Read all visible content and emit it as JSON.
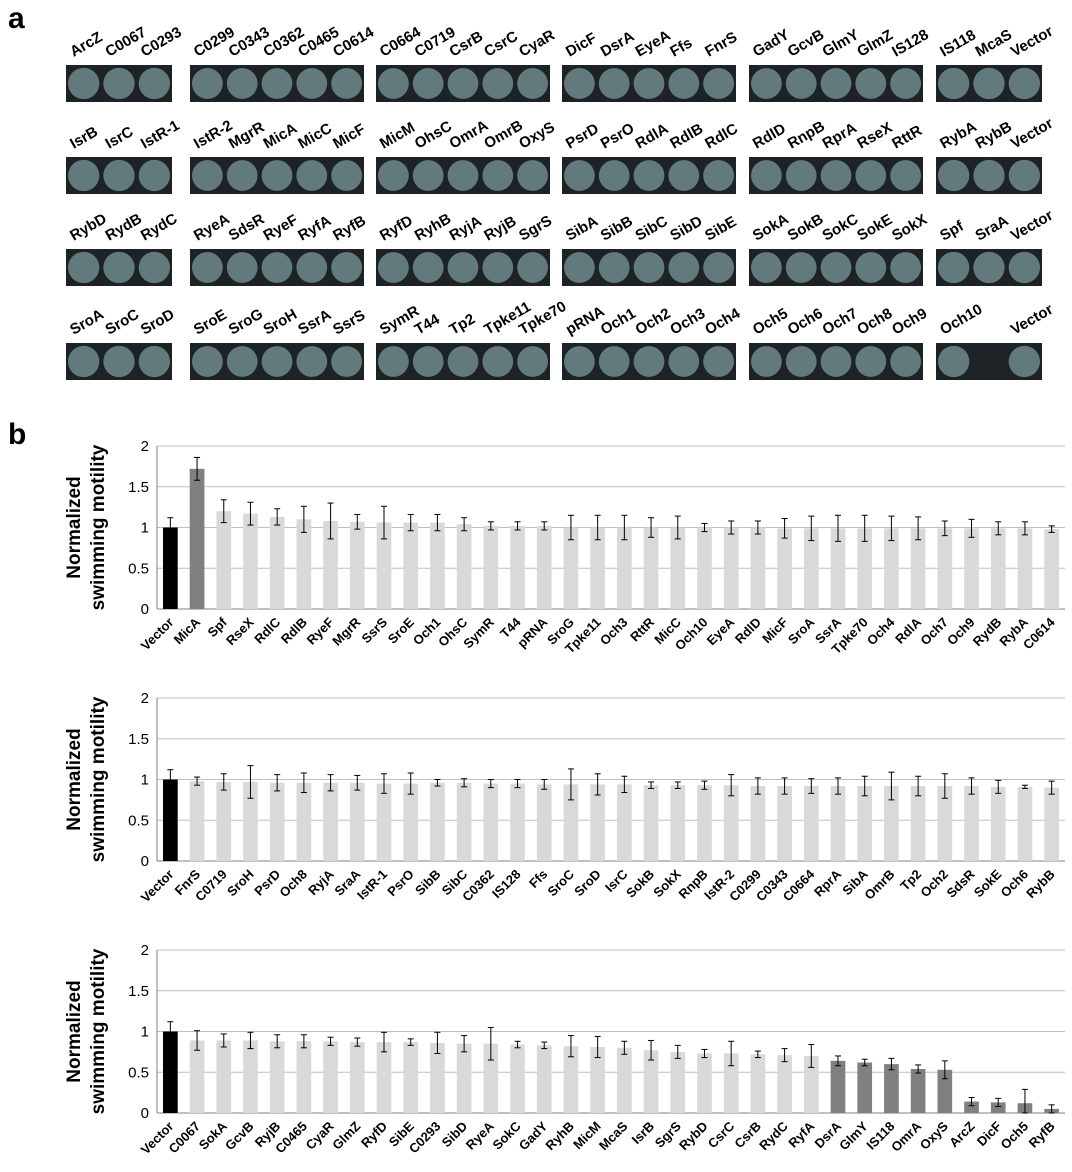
{
  "panel_a": {
    "letter": "a",
    "rows": [
      [
        [
          "ArcZ",
          "C0067",
          "C0293"
        ],
        [
          "C0299",
          "C0343",
          "C0362",
          "C0465",
          "C0614"
        ],
        [
          "C0664",
          "C0719",
          "CsrB",
          "CsrC",
          "CyaR"
        ],
        [
          "DicF",
          "DsrA",
          "EyeA",
          "Ffs",
          "FnrS"
        ],
        [
          "GadY",
          "GcvB",
          "GlmY",
          "GlmZ",
          "IS128"
        ],
        [
          "IS118",
          "McaS",
          "Vector"
        ]
      ],
      [
        [
          "IsrB",
          "IsrC",
          "IstR-1"
        ],
        [
          "IstR-2",
          "MgrR",
          "MicA",
          "MicC",
          "MicF"
        ],
        [
          "MicM",
          "OhsC",
          "OmrA",
          "OmrB",
          "OxyS"
        ],
        [
          "PsrD",
          "PsrO",
          "RdlA",
          "RdlB",
          "RdlC"
        ],
        [
          "RdlD",
          "RnpB",
          "RprA",
          "RseX",
          "RttR"
        ],
        [
          "RybA",
          "RybB",
          "Vector"
        ]
      ],
      [
        [
          "RybD",
          "RydB",
          "RydC"
        ],
        [
          "RyeA",
          "SdsR",
          "RyeF",
          "RyfA",
          "RyfB"
        ],
        [
          "RyfD",
          "RyhB",
          "RyjA",
          "RyjB",
          "SgrS"
        ],
        [
          "SibA",
          "SibB",
          "SibC",
          "SibD",
          "SibE"
        ],
        [
          "SokA",
          "SokB",
          "SokC",
          "SokE",
          "SokX"
        ],
        [
          "Spf",
          "SraA",
          "Vector"
        ]
      ],
      [
        [
          "SroA",
          "SroC",
          "SroD"
        ],
        [
          "SroE",
          "SroG",
          "SroH",
          "SsrA",
          "SsrS"
        ],
        [
          "SymR",
          "T44",
          "Tp2",
          "Tpke11",
          "Tpke70"
        ],
        [
          "pRNA",
          "Och1",
          "Och2",
          "Och3",
          "Och4"
        ],
        [
          "Och5",
          "Och6",
          "Och7",
          "Och8",
          "Och9"
        ],
        [
          "Och10",
          "",
          "Vector"
        ]
      ]
    ]
  },
  "panel_b": {
    "letter": "b"
  },
  "colors": {
    "vector": "#000000",
    "significant": "#808080",
    "normal": "#d9d9d9",
    "grid": "#bfbfbf",
    "plate_bg": "#1c2226",
    "colony": "#6f8a8c"
  },
  "chart_data": [
    {
      "type": "bar",
      "ylabel": "Normalized swimming motility",
      "ylim": [
        0,
        2
      ],
      "yticks": [
        "0",
        "0.5",
        "1",
        "1.5",
        "2"
      ],
      "categories": [
        "Vector",
        "MicA",
        "Spf",
        "RseX",
        "RdlC",
        "RdlB",
        "RyeF",
        "MgrR",
        "SsrS",
        "SroE",
        "Och1",
        "OhsC",
        "SymR",
        "T44",
        "pRNA",
        "SroG",
        "Tpke11",
        "Och3",
        "RttR",
        "MicC",
        "Och10",
        "EyeA",
        "RdlD",
        "MicF",
        "SroA",
        "SsrA",
        "Tpke70",
        "Och4",
        "RdlA",
        "Och7",
        "Och9",
        "RydB",
        "RybA",
        "C0614"
      ],
      "values": [
        1.0,
        1.72,
        1.2,
        1.17,
        1.13,
        1.1,
        1.08,
        1.07,
        1.06,
        1.06,
        1.06,
        1.04,
        1.02,
        1.02,
        1.02,
        1.0,
        1.0,
        1.0,
        1.0,
        1.0,
        1.0,
        1.0,
        1.0,
        0.99,
        0.99,
        0.99,
        0.99,
        0.99,
        0.99,
        0.99,
        0.99,
        0.99,
        0.99,
        0.98
      ],
      "errors": [
        0.12,
        0.14,
        0.14,
        0.14,
        0.1,
        0.16,
        0.22,
        0.09,
        0.2,
        0.1,
        0.1,
        0.08,
        0.05,
        0.05,
        0.05,
        0.15,
        0.15,
        0.15,
        0.12,
        0.14,
        0.05,
        0.08,
        0.08,
        0.12,
        0.15,
        0.16,
        0.16,
        0.15,
        0.14,
        0.09,
        0.11,
        0.08,
        0.08,
        0.04
      ]
    },
    {
      "type": "bar",
      "ylabel": "Normalized swimming motility",
      "ylim": [
        0,
        2
      ],
      "yticks": [
        "0",
        "0.5",
        "1",
        "1.5",
        "2"
      ],
      "categories": [
        "Vector",
        "FnrS",
        "C0719",
        "SroH",
        "PsrD",
        "Och8",
        "RyjA",
        "SraA",
        "IstR-1",
        "PsrO",
        "SibB",
        "SibC",
        "C0362",
        "IS128",
        "Ffs",
        "SroC",
        "SroD",
        "IsrC",
        "SokB",
        "SokX",
        "RnpB",
        "IstR-2",
        "C0299",
        "C0343",
        "C0664",
        "RprA",
        "SibA",
        "OmrB",
        "Tp2",
        "Och2",
        "SdsR",
        "SokE",
        "Och6",
        "RybB"
      ],
      "values": [
        1.0,
        0.98,
        0.97,
        0.97,
        0.96,
        0.96,
        0.96,
        0.96,
        0.95,
        0.95,
        0.96,
        0.96,
        0.95,
        0.95,
        0.94,
        0.94,
        0.94,
        0.94,
        0.93,
        0.93,
        0.93,
        0.93,
        0.92,
        0.92,
        0.92,
        0.92,
        0.92,
        0.92,
        0.92,
        0.92,
        0.92,
        0.91,
        0.91,
        0.9
      ],
      "errors": [
        0.12,
        0.05,
        0.1,
        0.2,
        0.1,
        0.12,
        0.1,
        0.09,
        0.12,
        0.13,
        0.04,
        0.05,
        0.05,
        0.05,
        0.06,
        0.19,
        0.13,
        0.1,
        0.04,
        0.04,
        0.05,
        0.13,
        0.1,
        0.1,
        0.09,
        0.1,
        0.12,
        0.17,
        0.12,
        0.15,
        0.1,
        0.08,
        0.02,
        0.08
      ]
    },
    {
      "type": "bar",
      "ylabel": "Normalized swimming motility",
      "ylim": [
        0,
        2
      ],
      "yticks": [
        "0",
        "0.5",
        "1",
        "1.5",
        "2"
      ],
      "categories": [
        "Vector",
        "C0067",
        "SokA",
        "GcvB",
        "RyjB",
        "C0465",
        "CyaR",
        "GlmZ",
        "RyfD",
        "SibE",
        "C0293",
        "SibD",
        "RyeA",
        "SokC",
        "GadY",
        "RyhB",
        "MicM",
        "McaS",
        "IsrB",
        "SgrS",
        "RybD",
        "CsrC",
        "CsrB",
        "RydC",
        "RyfA",
        "DsrA",
        "GlmY",
        "IS118",
        "OmrA",
        "OxyS",
        "ArcZ",
        "DicF",
        "Och5",
        "RyfB"
      ],
      "values": [
        1.0,
        0.89,
        0.89,
        0.89,
        0.88,
        0.88,
        0.88,
        0.87,
        0.87,
        0.87,
        0.86,
        0.85,
        0.85,
        0.84,
        0.83,
        0.82,
        0.81,
        0.8,
        0.77,
        0.75,
        0.73,
        0.73,
        0.72,
        0.71,
        0.7,
        0.64,
        0.62,
        0.6,
        0.54,
        0.53,
        0.14,
        0.13,
        0.12,
        0.05
      ],
      "errors": [
        0.12,
        0.12,
        0.08,
        0.1,
        0.08,
        0.08,
        0.05,
        0.05,
        0.12,
        0.04,
        0.13,
        0.1,
        0.2,
        0.04,
        0.04,
        0.13,
        0.13,
        0.08,
        0.12,
        0.08,
        0.05,
        0.15,
        0.04,
        0.08,
        0.14,
        0.06,
        0.04,
        0.07,
        0.05,
        0.11,
        0.05,
        0.05,
        0.17,
        0.05
      ]
    }
  ]
}
